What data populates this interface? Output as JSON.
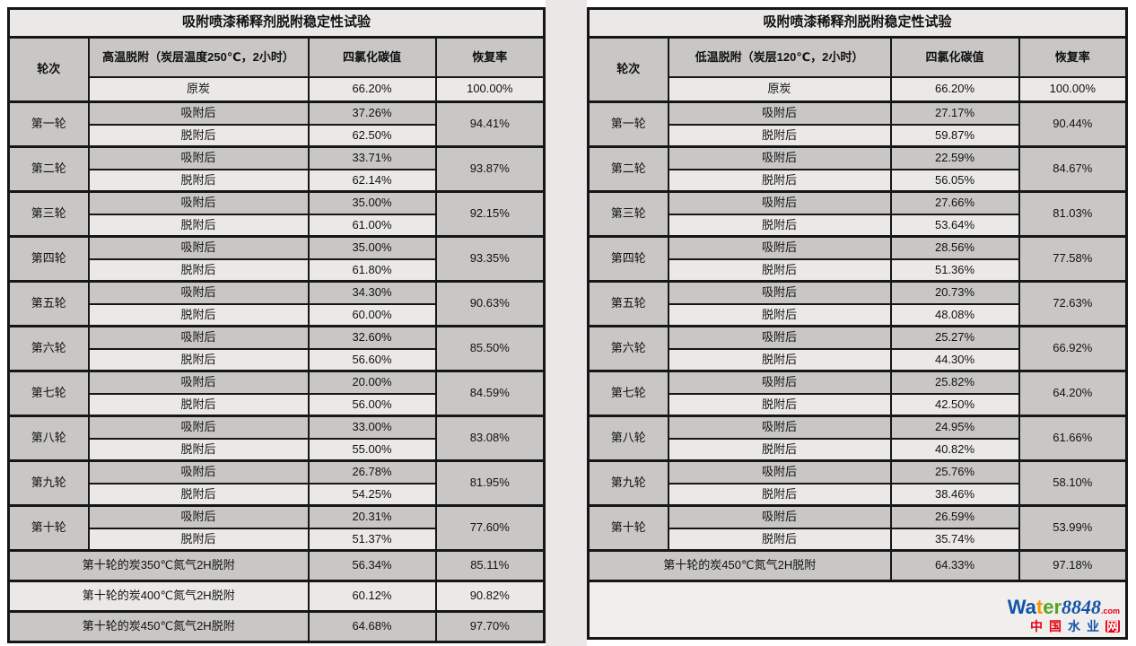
{
  "shared": {
    "adsorbed_label": "吸附后",
    "desorbed_label": "脱附后"
  },
  "left_table": {
    "title": "吸附喷漆稀释剂脱附稳定性试验",
    "headers": {
      "round": "轮次",
      "condition": "高温脱附（炭层温度250℃，2小时）",
      "ccl4": "四氯化碳值",
      "recovery": "恢复率"
    },
    "base": {
      "label": "原炭",
      "ccl4": "66.20%",
      "recovery": "100.00%"
    },
    "rounds": [
      {
        "label": "第一轮",
        "adsorbed": "37.26%",
        "desorbed": "62.50%",
        "recovery": "94.41%"
      },
      {
        "label": "第二轮",
        "adsorbed": "33.71%",
        "desorbed": "62.14%",
        "recovery": "93.87%"
      },
      {
        "label": "第三轮",
        "adsorbed": "35.00%",
        "desorbed": "61.00%",
        "recovery": "92.15%"
      },
      {
        "label": "第四轮",
        "adsorbed": "35.00%",
        "desorbed": "61.80%",
        "recovery": "93.35%"
      },
      {
        "label": "第五轮",
        "adsorbed": "34.30%",
        "desorbed": "60.00%",
        "recovery": "90.63%"
      },
      {
        "label": "第六轮",
        "adsorbed": "32.60%",
        "desorbed": "56.60%",
        "recovery": "85.50%"
      },
      {
        "label": "第七轮",
        "adsorbed": "20.00%",
        "desorbed": "56.00%",
        "recovery": "84.59%"
      },
      {
        "label": "第八轮",
        "adsorbed": "33.00%",
        "desorbed": "55.00%",
        "recovery": "83.08%"
      },
      {
        "label": "第九轮",
        "adsorbed": "26.78%",
        "desorbed": "54.25%",
        "recovery": "81.95%"
      },
      {
        "label": "第十轮",
        "adsorbed": "20.31%",
        "desorbed": "51.37%",
        "recovery": "77.60%"
      }
    ],
    "footers": [
      {
        "label": "第十轮的炭350℃氮气2H脱附",
        "ccl4": "56.34%",
        "recovery": "85.11%"
      },
      {
        "label": "第十轮的炭400℃氮气2H脱附",
        "ccl4": "60.12%",
        "recovery": "90.82%"
      },
      {
        "label": "第十轮的炭450℃氮气2H脱附",
        "ccl4": "64.68%",
        "recovery": "97.70%"
      }
    ]
  },
  "right_table": {
    "title": "吸附喷漆稀释剂脱附稳定性试验",
    "headers": {
      "round": "轮次",
      "condition": "低温脱附（炭层120℃，2小时）",
      "ccl4": "四氯化碳值",
      "recovery": "恢复率"
    },
    "base": {
      "label": "原炭",
      "ccl4": "66.20%",
      "recovery": "100.00%"
    },
    "rounds": [
      {
        "label": "第一轮",
        "adsorbed": "27.17%",
        "desorbed": "59.87%",
        "recovery": "90.44%"
      },
      {
        "label": "第二轮",
        "adsorbed": "22.59%",
        "desorbed": "56.05%",
        "recovery": "84.67%"
      },
      {
        "label": "第三轮",
        "adsorbed": "27.66%",
        "desorbed": "53.64%",
        "recovery": "81.03%"
      },
      {
        "label": "第四轮",
        "adsorbed": "28.56%",
        "desorbed": "51.36%",
        "recovery": "77.58%"
      },
      {
        "label": "第五轮",
        "adsorbed": "20.73%",
        "desorbed": "48.08%",
        "recovery": "72.63%"
      },
      {
        "label": "第六轮",
        "adsorbed": "25.27%",
        "desorbed": "44.30%",
        "recovery": "66.92%"
      },
      {
        "label": "第七轮",
        "adsorbed": "25.82%",
        "desorbed": "42.50%",
        "recovery": "64.20%"
      },
      {
        "label": "第八轮",
        "adsorbed": "24.95%",
        "desorbed": "40.82%",
        "recovery": "61.66%"
      },
      {
        "label": "第九轮",
        "adsorbed": "25.76%",
        "desorbed": "38.46%",
        "recovery": "58.10%"
      },
      {
        "label": "第十轮",
        "adsorbed": "26.59%",
        "desorbed": "35.74%",
        "recovery": "53.99%"
      }
    ],
    "footers": [
      {
        "label": "第十轮的炭450℃氮气2H脱附",
        "ccl4": "64.33%",
        "recovery": "97.18%"
      }
    ]
  },
  "watermark": {
    "segments": [
      {
        "text": "Wa",
        "color": "#1553a8"
      },
      {
        "text": "t",
        "color": "#f39800"
      },
      {
        "text": "er",
        "color": "#5aa421"
      },
      {
        "text": "8848",
        "color": "#1553a8",
        "serif": true
      },
      {
        "text": ".com",
        "color": "#e60012",
        "small": true
      }
    ],
    "tagline_chars": [
      {
        "text": "中",
        "color": "#e60012"
      },
      {
        "text": "国",
        "color": "#e60012"
      },
      {
        "text": "水",
        "color": "#1553a8"
      },
      {
        "text": "业",
        "color": "#1553a8"
      },
      {
        "text": "网",
        "color": "#ffffff",
        "bg": "#e60012"
      }
    ]
  }
}
